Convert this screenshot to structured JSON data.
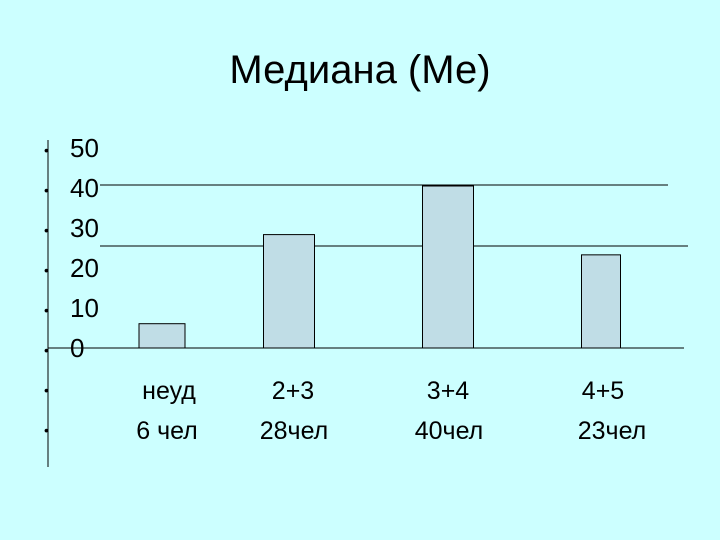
{
  "chart_data": {
    "type": "bar",
    "title": "Медиана (Ме)",
    "yticks": [
      "50",
      "40",
      "30",
      "20",
      "10",
      "0"
    ],
    "categories": [
      {
        "label": "неуд",
        "count": "6 чел"
      },
      {
        "label": "2+3",
        "count": "28чел"
      },
      {
        "label": "3+4",
        "count": "40чел"
      },
      {
        "label": "4+5",
        "count": "23чел"
      }
    ],
    "values": [
      6,
      28,
      40,
      23
    ],
    "ylim": [
      0,
      50
    ],
    "colors": {
      "bar_fill": "#c0dde6",
      "bar_stroke": "#000000",
      "background": "#ccffff"
    }
  }
}
